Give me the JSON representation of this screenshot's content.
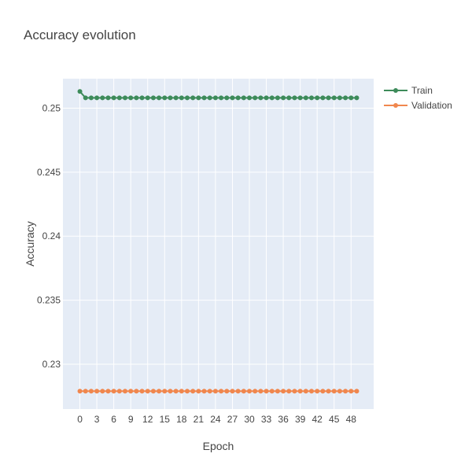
{
  "chart_data": {
    "type": "line",
    "title": "Accuracy evolution",
    "xlabel": "Epoch",
    "ylabel": "Accuracy",
    "x": [
      0,
      1,
      2,
      3,
      4,
      5,
      6,
      7,
      8,
      9,
      10,
      11,
      12,
      13,
      14,
      15,
      16,
      17,
      18,
      19,
      20,
      21,
      22,
      23,
      24,
      25,
      26,
      27,
      28,
      29,
      30,
      31,
      32,
      33,
      34,
      35,
      36,
      37,
      38,
      39,
      40,
      41,
      42,
      43,
      44,
      45,
      46,
      47,
      48,
      49
    ],
    "xticks": [
      0,
      3,
      6,
      9,
      12,
      15,
      18,
      21,
      24,
      27,
      30,
      33,
      36,
      39,
      42,
      45,
      48
    ],
    "xlim": [
      -3,
      52
    ],
    "yticks": [
      0.23,
      0.235,
      0.24,
      0.245,
      0.25
    ],
    "ylim": [
      0.2265,
      0.2523
    ],
    "grid": true,
    "legend_position": "top-right",
    "series": [
      {
        "name": "Train",
        "color": "#3d8b5a",
        "values": [
          0.2513,
          0.2508,
          0.2508,
          0.2508,
          0.2508,
          0.2508,
          0.2508,
          0.2508,
          0.2508,
          0.2508,
          0.2508,
          0.2508,
          0.2508,
          0.2508,
          0.2508,
          0.2508,
          0.2508,
          0.2508,
          0.2508,
          0.2508,
          0.2508,
          0.2508,
          0.2508,
          0.2508,
          0.2508,
          0.2508,
          0.2508,
          0.2508,
          0.2508,
          0.2508,
          0.2508,
          0.2508,
          0.2508,
          0.2508,
          0.2508,
          0.2508,
          0.2508,
          0.2508,
          0.2508,
          0.2508,
          0.2508,
          0.2508,
          0.2508,
          0.2508,
          0.2508,
          0.2508,
          0.2508,
          0.2508,
          0.2508,
          0.2508
        ]
      },
      {
        "name": "Validation",
        "color": "#f0874e",
        "values": [
          0.2279,
          0.2279,
          0.2279,
          0.2279,
          0.2279,
          0.2279,
          0.2279,
          0.2279,
          0.2279,
          0.2279,
          0.2279,
          0.2279,
          0.2279,
          0.2279,
          0.2279,
          0.2279,
          0.2279,
          0.2279,
          0.2279,
          0.2279,
          0.2279,
          0.2279,
          0.2279,
          0.2279,
          0.2279,
          0.2279,
          0.2279,
          0.2279,
          0.2279,
          0.2279,
          0.2279,
          0.2279,
          0.2279,
          0.2279,
          0.2279,
          0.2279,
          0.2279,
          0.2279,
          0.2279,
          0.2279,
          0.2279,
          0.2279,
          0.2279,
          0.2279,
          0.2279,
          0.2279,
          0.2279,
          0.2279,
          0.2279,
          0.2279
        ]
      }
    ]
  }
}
